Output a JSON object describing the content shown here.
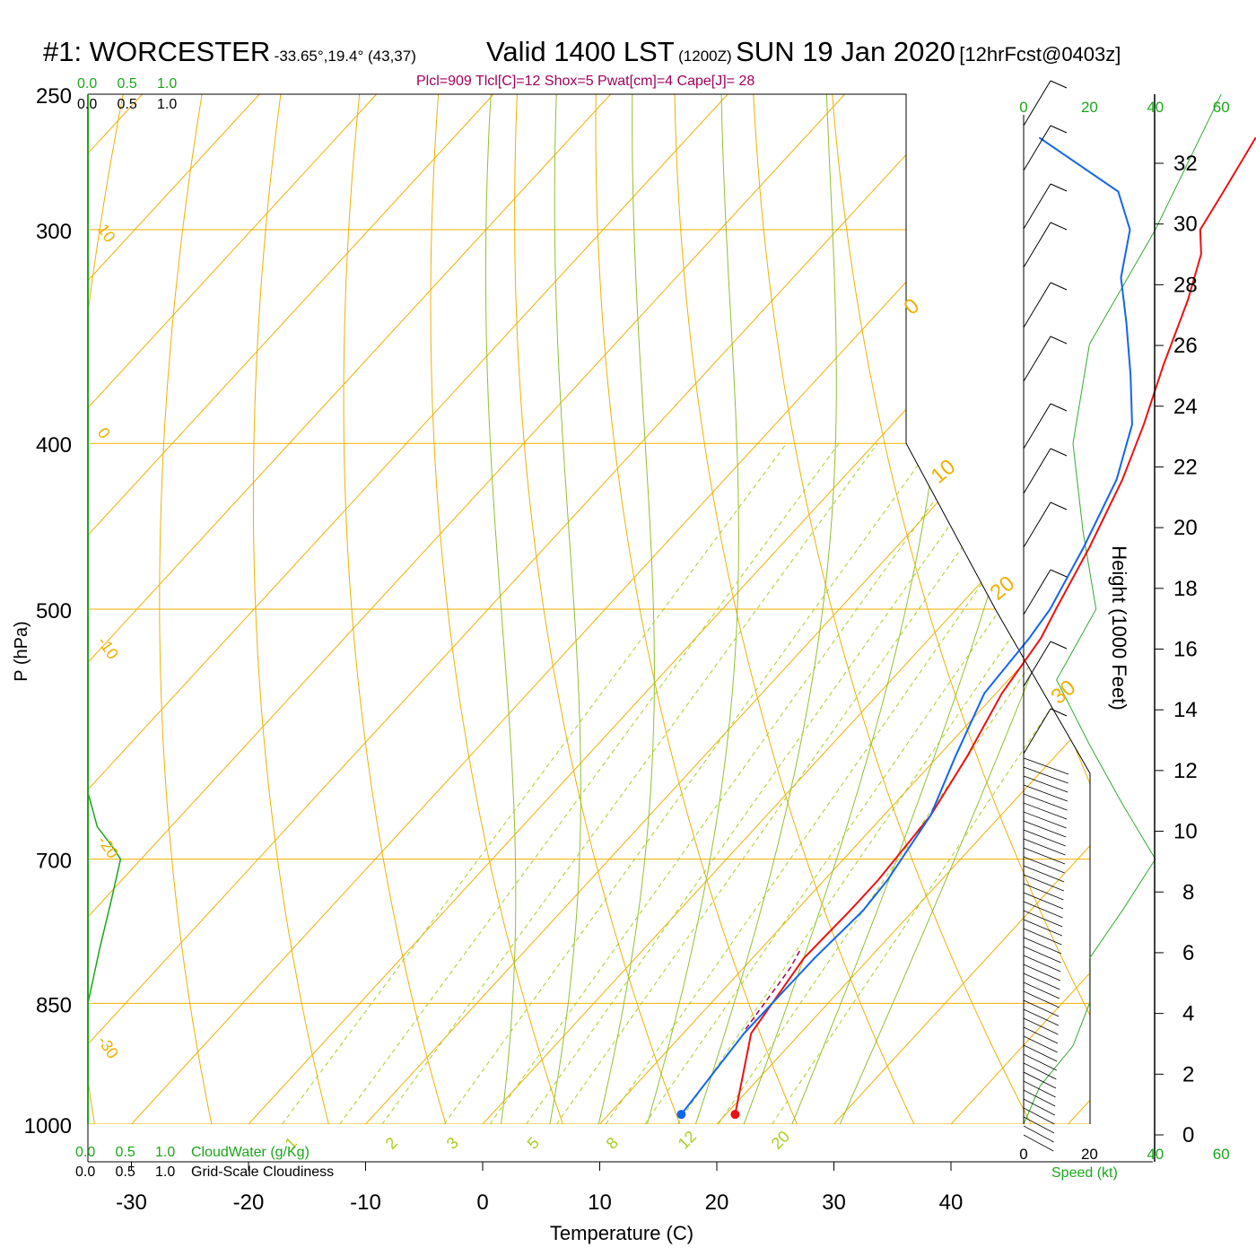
{
  "header": {
    "station": "#1: WORCESTER",
    "location": "-33.65°,19.4° (43,37)",
    "valid": "Valid 1400 LST",
    "zulu": "(1200Z)",
    "date": "SUN 19 Jan 2020",
    "forecast": "[12hrFcst@0403z]"
  },
  "params": "Plcl=909 Tlcl[C]=12 Shox=5 Pwat[cm]=4 Cape[J]= 28",
  "labels": {
    "cloud_water": "CloudWater (g/Kg)",
    "cloudiness": "Grid-Scale Cloudiness",
    "speed": "Speed (kt)",
    "scale_values": [
      "0.0",
      "0.5",
      "1.0"
    ]
  },
  "colors": {
    "isotherm": "#f0b000",
    "dry_adiabat": "#a8d020",
    "moist_adiabat": "#90c030",
    "mixing_ratio": "#a8d020",
    "temperature": "#ee1111",
    "dewpoint": "#1166ee",
    "cloud_water": "#1aa61a",
    "wind_speed": "#33aa33",
    "parcel": "#a0005a"
  },
  "chart_data": {
    "type": "line",
    "title": "",
    "xlabel": "Temperature (C)",
    "ylabel": "P (hPa)",
    "y2label": "Height (1000 Feet)",
    "x_ticks": [
      -30,
      -20,
      -10,
      0,
      10,
      20,
      30,
      40
    ],
    "p_ticks": [
      250,
      300,
      400,
      500,
      700,
      850,
      1000
    ],
    "height_ticks": [
      0,
      2,
      4,
      6,
      8,
      10,
      12,
      14,
      16,
      18,
      20,
      22,
      24,
      26,
      28,
      30,
      32
    ],
    "speed_ticks": [
      0,
      20,
      40,
      60
    ],
    "isotherm_labels": [
      "10",
      "0",
      "-10",
      "-20",
      "-30",
      "0",
      "10",
      "20",
      "30"
    ],
    "mixing_ratio_labels": [
      "1",
      "2",
      "3",
      "5",
      "8",
      "12",
      "20"
    ],
    "series": [
      {
        "name": "Temperature",
        "points": [
          [
            20.8,
            987
          ],
          [
            15.8,
            885
          ],
          [
            14.4,
            800
          ],
          [
            14.6,
            750
          ],
          [
            14.6,
            720
          ],
          [
            14.0,
            660
          ],
          [
            12.5,
            610
          ],
          [
            10.5,
            560
          ],
          [
            9.5,
            520
          ],
          [
            8.5,
            500
          ],
          [
            6.5,
            460
          ],
          [
            4.0,
            420
          ],
          [
            1.5,
            390
          ],
          [
            -1.5,
            360
          ],
          [
            -4.5,
            330
          ],
          [
            -7.0,
            310
          ],
          [
            -9.0,
            300
          ],
          [
            -10.0,
            285
          ],
          [
            -11.5,
            265
          ]
        ]
      },
      {
        "name": "Dewpoint",
        "points": [
          [
            16.2,
            987
          ],
          [
            15.2,
            885
          ],
          [
            15.3,
            800
          ],
          [
            15.7,
            750
          ],
          [
            15.4,
            720
          ],
          [
            14.0,
            660
          ],
          [
            11.5,
            610
          ],
          [
            9.0,
            560
          ],
          [
            8.5,
            520
          ],
          [
            8.0,
            500
          ],
          [
            6.0,
            460
          ],
          [
            3.5,
            420
          ],
          [
            0.5,
            390
          ],
          [
            -3.5,
            365
          ],
          [
            -8.0,
            340
          ],
          [
            -12.0,
            320
          ],
          [
            -15.0,
            300
          ],
          [
            -19.0,
            285
          ],
          [
            -30.0,
            265
          ]
        ]
      }
    ],
    "surface_points": {
      "temperature": [
        20.8,
        987
      ],
      "dewpoint": [
        16.2,
        987
      ]
    },
    "parcel_path": [
      [
        15.0,
        880
      ],
      [
        14.0,
        810
      ],
      [
        13.4,
        790
      ]
    ],
    "cloud_water_profile": [
      [
        0.0,
        640
      ],
      [
        0.08,
        670
      ],
      [
        0.22,
        690
      ],
      [
        0.28,
        700
      ],
      [
        0.2,
        740
      ],
      [
        0.1,
        790
      ],
      [
        0.0,
        850
      ]
    ],
    "wind_speed_profile": [
      [
        60,
        250
      ],
      [
        40,
        300
      ],
      [
        20,
        350
      ],
      [
        15,
        400
      ],
      [
        18,
        450
      ],
      [
        22,
        500
      ],
      [
        10,
        550
      ],
      [
        20,
        600
      ],
      [
        30,
        650
      ],
      [
        40,
        700
      ],
      [
        30,
        750
      ],
      [
        20,
        800
      ],
      [
        20,
        850
      ],
      [
        15,
        900
      ],
      [
        5,
        950
      ],
      [
        0,
        1000
      ]
    ]
  }
}
